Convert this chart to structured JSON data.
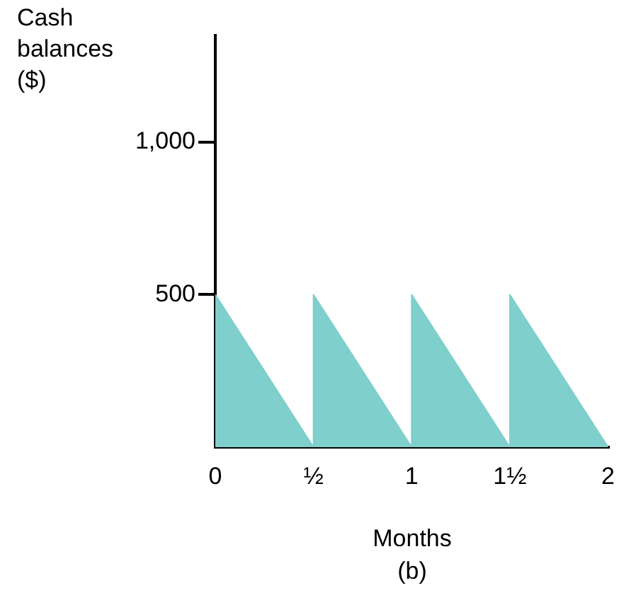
{
  "chart_data": {
    "type": "area",
    "ylabel": "Cash balances ($)",
    "xlabel": "Months",
    "annotations": [
      "(b)"
    ],
    "x": [
      0,
      0.5,
      0.5,
      1,
      1,
      1.5,
      1.5,
      2
    ],
    "values": [
      500,
      0,
      500,
      0,
      500,
      0,
      500,
      0
    ],
    "color": "#7fcfcc",
    "marker": "none",
    "xlim": [
      0,
      2
    ],
    "xticks": [
      0,
      {
        "value": 0.5,
        "label": "½"
      },
      1,
      {
        "value": 1.5,
        "label": "1½"
      },
      2
    ],
    "ylim": [
      0,
      1350
    ],
    "yticks": [
      500,
      {
        "value": 1000,
        "label": "1,000"
      }
    ]
  }
}
